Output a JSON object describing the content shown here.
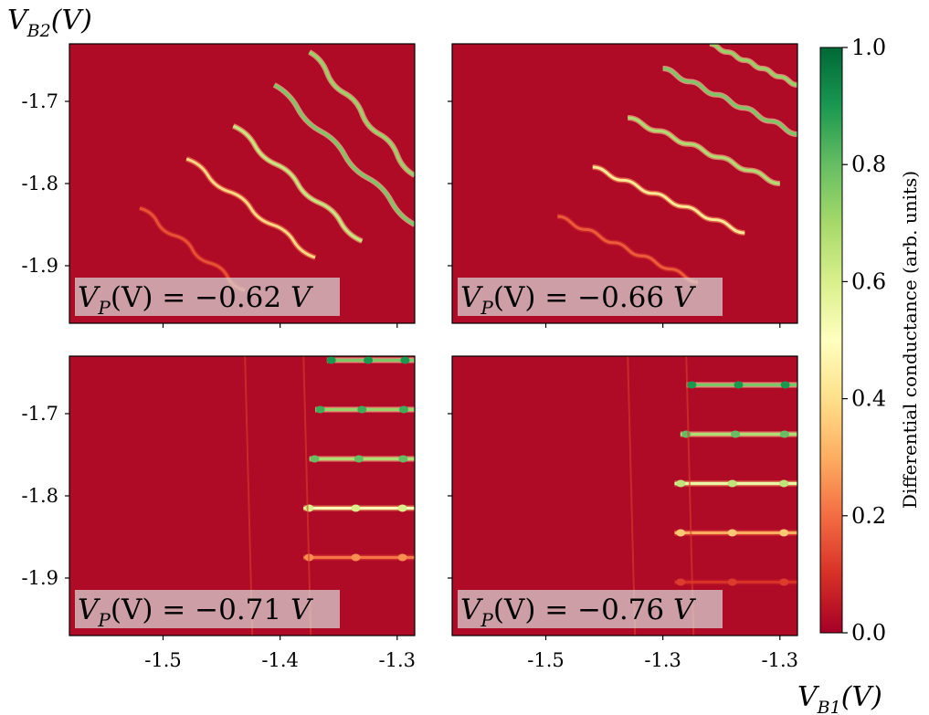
{
  "chart_data": {
    "type": "heatmap",
    "y_axis_title": {
      "main": "V",
      "sub": "B2",
      "unit": "(V)"
    },
    "x_axis_title": {
      "main": "V",
      "sub": "B1",
      "unit": "(V)"
    },
    "colorbar": {
      "label": "Differential conductance (arb. units)",
      "range": [
        0.0,
        1.0
      ],
      "ticks": [
        "0.0",
        "0.2",
        "0.4",
        "0.6",
        "0.8",
        "1.0"
      ],
      "colormap": [
        "#a50026",
        "#d73027",
        "#f46d43",
        "#fdae61",
        "#fee08b",
        "#ffffbf",
        "#d9ef8b",
        "#a6d96a",
        "#66bd63",
        "#1a9850",
        "#006837"
      ]
    },
    "y_ticks": [
      "-1.7",
      "-1.8",
      "-1.9"
    ],
    "x_ticks": [
      "-1.5",
      "-1.4",
      "-1.3"
    ],
    "x_ticks_right_column": [
      "-1.5",
      "-1.3",
      "-1.3"
    ],
    "panels": [
      {
        "label": "V_P(V) = −0.62 V",
        "label_parts": {
          "main": "V",
          "sub": "P",
          "mid": "(V) = −0.62",
          "unit": "V"
        },
        "xlim": [
          -1.58,
          -1.285
        ],
        "ylim": [
          -1.97,
          -1.63
        ],
        "pattern": "diagonal",
        "lines": [
          {
            "x0": -1.375,
            "y0": -1.64,
            "x1": -1.285,
            "y1": -1.79,
            "peak": 0.85
          },
          {
            "x0": -1.405,
            "y0": -1.68,
            "x1": -1.285,
            "y1": -1.85,
            "peak": 0.9
          },
          {
            "x0": -1.44,
            "y0": -1.73,
            "x1": -1.33,
            "y1": -1.87,
            "peak": 0.75
          },
          {
            "x0": -1.48,
            "y0": -1.77,
            "x1": -1.37,
            "y1": -1.89,
            "peak": 0.45
          },
          {
            "x0": -1.52,
            "y0": -1.83,
            "x1": -1.43,
            "y1": -1.93,
            "peak": 0.18
          }
        ]
      },
      {
        "label": "V_P(V) = −0.66 V",
        "label_parts": {
          "main": "V",
          "sub": "P",
          "mid": "(V) = −0.66",
          "unit": "V"
        },
        "xlim": [
          -1.58,
          -1.285
        ],
        "ylim": [
          -1.97,
          -1.63
        ],
        "pattern": "staircase",
        "lines": [
          {
            "x0": -1.36,
            "y0": -1.63,
            "x1": -1.285,
            "y1": -1.68,
            "peak": 0.85
          },
          {
            "x0": -1.4,
            "y0": -1.66,
            "x1": -1.285,
            "y1": -1.74,
            "peak": 0.9
          },
          {
            "x0": -1.43,
            "y0": -1.72,
            "x1": -1.3,
            "y1": -1.8,
            "peak": 0.8
          },
          {
            "x0": -1.46,
            "y0": -1.78,
            "x1": -1.33,
            "y1": -1.86,
            "peak": 0.5
          },
          {
            "x0": -1.49,
            "y0": -1.84,
            "x1": -1.37,
            "y1": -1.92,
            "peak": 0.2
          }
        ]
      },
      {
        "label": "V_P(V) = −0.71 V",
        "label_parts": {
          "main": "V",
          "sub": "P",
          "mid": "(V) = −0.71",
          "unit": "V"
        },
        "xlim": [
          -1.58,
          -1.285
        ],
        "ylim": [
          -1.97,
          -1.63
        ],
        "pattern": "horizontal",
        "lines": [
          {
            "x0": -1.36,
            "y0": -1.635,
            "x1": -1.285,
            "y1": -1.635,
            "peak": 0.9
          },
          {
            "x0": -1.37,
            "y0": -1.695,
            "x1": -1.285,
            "y1": -1.695,
            "peak": 0.85
          },
          {
            "x0": -1.375,
            "y0": -1.755,
            "x1": -1.285,
            "y1": -1.755,
            "peak": 0.8
          },
          {
            "x0": -1.38,
            "y0": -1.815,
            "x1": -1.285,
            "y1": -1.815,
            "peak": 0.6
          },
          {
            "x0": -1.38,
            "y0": -1.875,
            "x1": -1.285,
            "y1": -1.875,
            "peak": 0.25
          }
        ]
      },
      {
        "label": "V_P(V) = −0.76 V",
        "label_parts": {
          "main": "V",
          "sub": "P",
          "mid": "(V) = −0.76",
          "unit": "V"
        },
        "xlim": [
          -1.58,
          -1.285
        ],
        "ylim": [
          -1.97,
          -1.63
        ],
        "pattern": "horizontal",
        "lines": [
          {
            "x0": -1.38,
            "y0": -1.665,
            "x1": -1.285,
            "y1": -1.665,
            "peak": 0.9
          },
          {
            "x0": -1.385,
            "y0": -1.725,
            "x1": -1.285,
            "y1": -1.725,
            "peak": 0.8
          },
          {
            "x0": -1.39,
            "y0": -1.785,
            "x1": -1.285,
            "y1": -1.785,
            "peak": 0.65
          },
          {
            "x0": -1.39,
            "y0": -1.845,
            "x1": -1.285,
            "y1": -1.845,
            "peak": 0.35
          },
          {
            "x0": -1.39,
            "y0": -1.905,
            "x1": -1.285,
            "y1": -1.905,
            "peak": 0.12
          }
        ]
      }
    ]
  }
}
